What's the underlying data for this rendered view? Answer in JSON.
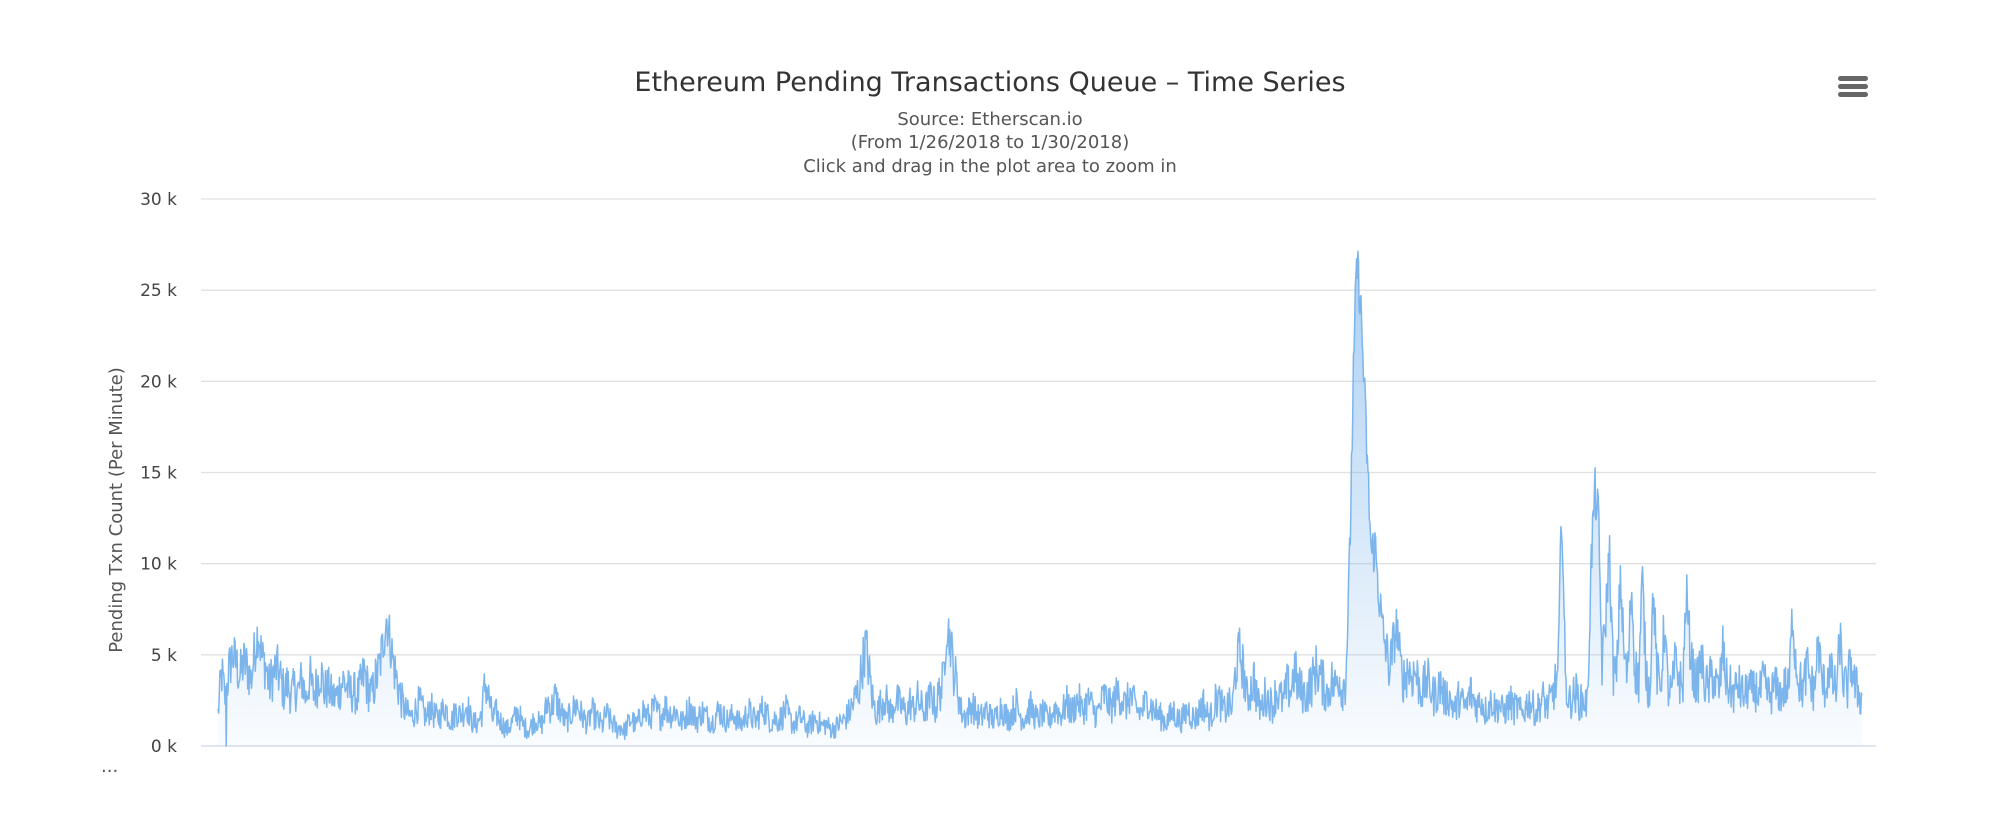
{
  "header": {
    "title": "Ethereum Pending Transactions Queue – Time Series",
    "subtitle_lines": [
      "Source: Etherscan.io",
      "(From 1/26/2018 to 1/30/2018)",
      "Click and drag in the plot area to zoom in"
    ]
  },
  "menu": {
    "icon": "hamburger-menu-icon"
  },
  "footer": {
    "ellipsis": "..."
  },
  "colors": {
    "line": "#7cb5ec",
    "grid": "#e0e0e0",
    "axis_line": "#ccd6eb"
  },
  "chart_data": {
    "type": "area",
    "title": "Ethereum Pending Transactions Queue – Time Series",
    "subtitle": "Source: Etherscan.io (From 1/26/2018 to 1/30/2018) Click and drag in the plot area to zoom in",
    "xlabel": "",
    "ylabel": "Pending Txn Count (Per Minute)",
    "xlim": [
      "1/26/2018",
      "1/30/2018"
    ],
    "ylim": [
      0,
      30000
    ],
    "y_ticks": [
      0,
      5000,
      10000,
      15000,
      20000,
      25000,
      30000
    ],
    "y_tick_labels": [
      "0 k",
      "5 k",
      "10 k",
      "15 k",
      "20 k",
      "25 k",
      "30 k"
    ],
    "grid": true,
    "legend": "none",
    "series": [
      {
        "name": "",
        "x_start": "1/26/2018",
        "x_end": "1/30/2018",
        "approx_values": [
          1800,
          4000,
          2500,
          4200,
          5000,
          4500,
          3800,
          4600,
          4300,
          3600,
          5200,
          6400,
          4800,
          4400,
          3300,
          3900,
          4300,
          3700,
          3000,
          3400,
          2800,
          3200,
          3000,
          3700,
          2600,
          3800,
          2900,
          3300,
          4200,
          3000,
          3200,
          2800,
          2600,
          3000,
          3600,
          3300,
          2900,
          3000,
          2700,
          3300,
          4000,
          3100,
          2800,
          3600,
          4200,
          5500,
          7100,
          5800,
          4400,
          3500,
          2600,
          2000,
          1700,
          1600,
          2000,
          2400,
          1900,
          1500,
          2200,
          1700,
          1500,
          1800,
          2200,
          1600,
          1400,
          2000,
          1700,
          1900,
          2300,
          1500,
          1200,
          1300,
          1800,
          3500,
          2600,
          1500,
          1800,
          1400,
          1100,
          900,
          1200,
          1500,
          1900,
          1200,
          1000,
          900,
          1300,
          1500,
          1100,
          1400,
          2500,
          2000,
          2700,
          2200,
          1700,
          1300,
          1600,
          2000,
          2300,
          1800,
          1500,
          1200,
          1900,
          1600,
          1300,
          1100,
          1800,
          1400,
          1200,
          900,
          1100,
          800,
          1200,
          1500,
          1100,
          1400,
          2000,
          1700,
          1500,
          2100,
          1800,
          1600,
          2200,
          1900,
          1700,
          2000,
          1400,
          1300,
          1800,
          2100,
          1600,
          1400,
          1900,
          1700,
          1500,
          1300,
          1700,
          2000,
          1600,
          1400,
          1500,
          1800,
          1300,
          1200,
          1600,
          1900,
          1500,
          1400,
          1800,
          2100,
          1700,
          1300,
          1500,
          1400,
          1600,
          2000,
          1500,
          1200,
          1300,
          1600,
          1300,
          1000,
          1200,
          1500,
          1300,
          1100,
          1200,
          1000,
          900,
          1100,
          1300,
          1400,
          1700,
          2100,
          2600,
          3100,
          4500,
          5600,
          3700,
          2300,
          1800,
          2300,
          2700,
          2200,
          1800,
          2600,
          2300,
          2100,
          1700,
          2400,
          2000,
          2600,
          2200,
          1900,
          2400,
          2800,
          2000,
          3000,
          3400,
          6700,
          5800,
          4000,
          3200,
          1900,
          1600,
          1900,
          2300,
          1800,
          1500,
          1700,
          2000,
          1600,
          1400,
          1800,
          2200,
          1700,
          1500,
          1900,
          2300,
          1700,
          1500,
          1800,
          2100,
          1700,
          1400,
          1800,
          1600,
          1400,
          1900,
          2100,
          1700,
          2000,
          2400,
          1800,
          2200,
          2600,
          1900,
          2300,
          2500,
          2000,
          1700,
          2200,
          2800,
          2400,
          2100,
          2600,
          3000,
          2500,
          2200,
          2800,
          2400,
          2000,
          1800,
          2200,
          2600,
          2100,
          1900,
          1700,
          1500,
          1300,
          1600,
          1900,
          1500,
          1400,
          1700,
          2000,
          1600,
          1500,
          1900,
          2400,
          1800,
          1500,
          2200,
          2700,
          2200,
          1900,
          2300,
          2000,
          4300,
          5200,
          4200,
          2600,
          3100,
          3700,
          2300,
          2000,
          2800,
          2500,
          2200,
          3000,
          2700,
          2400,
          3300,
          3000,
          4200,
          3300,
          3000,
          2700,
          3200,
          3600,
          4300,
          3800,
          3300,
          2800,
          3600,
          3200,
          4000,
          3100,
          3700,
          9500,
          19500,
          26600,
          24500,
          20000,
          15000,
          10500,
          11000,
          8500,
          6400,
          5300,
          4200,
          5600,
          6600,
          4200,
          3600,
          4300,
          3800,
          4100,
          3400,
          3000,
          3600,
          3300,
          2700,
          3000,
          3400,
          2500,
          2800,
          2300,
          2000,
          2700,
          2300,
          2100,
          3000,
          2500,
          2200,
          2600,
          1900,
          2200,
          2500,
          2000,
          2300,
          1800,
          2100,
          2400,
          2000,
          2200,
          1700,
          2100,
          2500,
          2200,
          1800,
          2300,
          2600,
          2100,
          2500,
          3200,
          3800,
          13500,
          3500,
          2400,
          2700,
          2900,
          2300,
          2600,
          2200,
          9900,
          14000,
          12500,
          4400,
          7000,
          10900,
          4200,
          3700,
          9500,
          5000,
          3700,
          8900,
          4300,
          3500,
          9300,
          4100,
          3000,
          8600,
          4000,
          3100,
          6700,
          3200,
          2800,
          4600,
          3800,
          3000,
          8500,
          5600,
          3800,
          3400,
          4800,
          3600,
          3100,
          4000,
          3400,
          3000,
          5300,
          3500,
          3200,
          2800,
          3400,
          3000,
          2700,
          3300,
          2900,
          3100,
          2800,
          3500,
          3000,
          2700,
          3300,
          3000,
          2800,
          3300,
          3000,
          7300,
          4500,
          3500,
          3100,
          4400,
          3400,
          3000,
          5700,
          3600,
          3200,
          4300,
          3500,
          3000,
          5900,
          3400,
          3100,
          4700,
          3300,
          3000,
          2400
        ]
      }
    ]
  }
}
